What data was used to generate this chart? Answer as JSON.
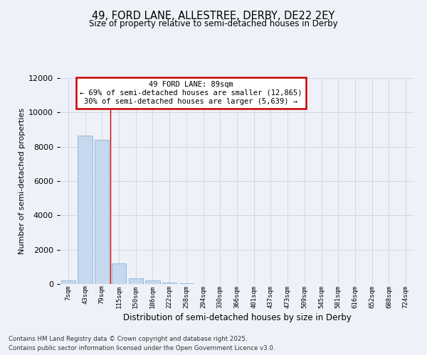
{
  "title": "49, FORD LANE, ALLESTREE, DERBY, DE22 2EY",
  "subtitle": "Size of property relative to semi-detached houses in Derby",
  "xlabel": "Distribution of semi-detached houses by size in Derby",
  "ylabel": "Number of semi-detached properties",
  "categories": [
    "7sqm",
    "43sqm",
    "79sqm",
    "115sqm",
    "150sqm",
    "186sqm",
    "222sqm",
    "258sqm",
    "294sqm",
    "330sqm",
    "366sqm",
    "401sqm",
    "437sqm",
    "473sqm",
    "509sqm",
    "545sqm",
    "581sqm",
    "616sqm",
    "652sqm",
    "688sqm",
    "724sqm"
  ],
  "values": [
    200,
    8650,
    8400,
    1200,
    330,
    200,
    100,
    50,
    0,
    0,
    0,
    0,
    0,
    0,
    0,
    0,
    0,
    0,
    0,
    0,
    0
  ],
  "bar_color": "#c5d8ee",
  "bar_edge_color": "#8ab4d8",
  "grid_color": "#d0d8e8",
  "background_color": "#eef2f8",
  "red_line_x": 2.5,
  "annotation_title": "49 FORD LANE: 89sqm",
  "annotation_line1": "← 69% of semi-detached houses are smaller (12,865)",
  "annotation_line2": "30% of semi-detached houses are larger (5,639) →",
  "annotation_box_color": "#ffffff",
  "annotation_box_edge": "#cc0000",
  "ylim": [
    0,
    12000
  ],
  "yticks": [
    0,
    2000,
    4000,
    6000,
    8000,
    10000,
    12000
  ],
  "footer_line1": "Contains HM Land Registry data © Crown copyright and database right 2025.",
  "footer_line2": "Contains public sector information licensed under the Open Government Licence v3.0."
}
